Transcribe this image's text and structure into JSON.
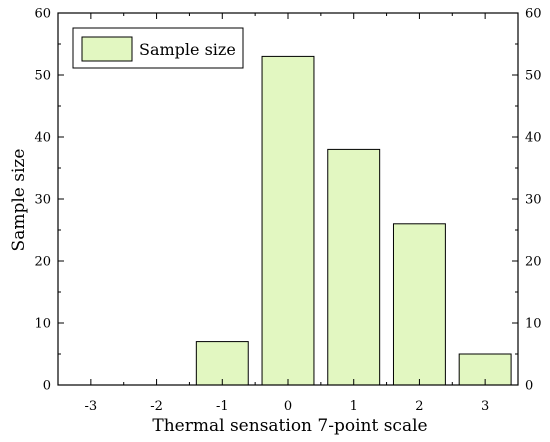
{
  "chart_data": {
    "type": "bar",
    "categories": [
      "-3",
      "-2",
      "-1",
      "0",
      "1",
      "2",
      "3"
    ],
    "values": [
      0,
      0,
      7,
      53,
      38,
      26,
      5
    ],
    "title": "",
    "xlabel": "Thermal sensation 7-point scale",
    "ylabel": "Sample size",
    "ylim": [
      0,
      60
    ],
    "yticks": [
      "0",
      "10",
      "20",
      "30",
      "40",
      "50",
      "60"
    ],
    "right_yticks": [
      "0",
      "10",
      "20",
      "30",
      "40",
      "50",
      "60"
    ],
    "grid": false,
    "legend": {
      "placement": "top-left",
      "entries": [
        "Sample size"
      ]
    },
    "bar_color": "#e2f7c1",
    "edge_color": "#000000"
  }
}
